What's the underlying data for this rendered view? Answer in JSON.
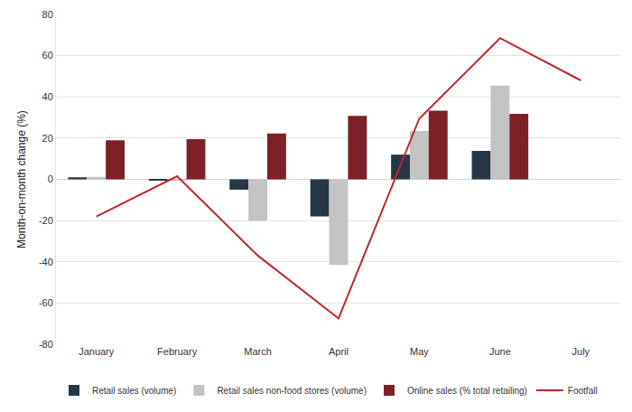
{
  "chart_data": {
    "type": "bar",
    "y_label": "Month-on-month change (%)",
    "categories": [
      "January",
      "February",
      "March",
      "April",
      "May",
      "June",
      "July"
    ],
    "series": [
      {
        "name": "Retail sales (volume)",
        "type": "bar",
        "color": "#253746",
        "values": [
          1,
          -0.3,
          -5,
          -18,
          12,
          13.8,
          null
        ]
      },
      {
        "name": "Retail sales non-food stores (volume)",
        "type": "bar",
        "color": "#c3c3c3",
        "values": [
          1.2,
          -0.4,
          -20,
          -41.5,
          23.5,
          45.5,
          null
        ]
      },
      {
        "name": "Online sales (% total retailing)",
        "type": "bar",
        "color": "#7d2128",
        "values": [
          19,
          19.5,
          22.3,
          30.8,
          33.3,
          31.8,
          null
        ]
      },
      {
        "name": "Footfall",
        "type": "line",
        "color": "#c0262e",
        "values": [
          -18,
          1.5,
          -37,
          -67.5,
          29.5,
          68.5,
          48
        ]
      }
    ],
    "ylim": [
      -80,
      80
    ],
    "yticks": [
      -80,
      -60,
      -40,
      -20,
      0,
      20,
      40,
      60,
      80
    ],
    "grid": true,
    "legend": "bottom"
  }
}
